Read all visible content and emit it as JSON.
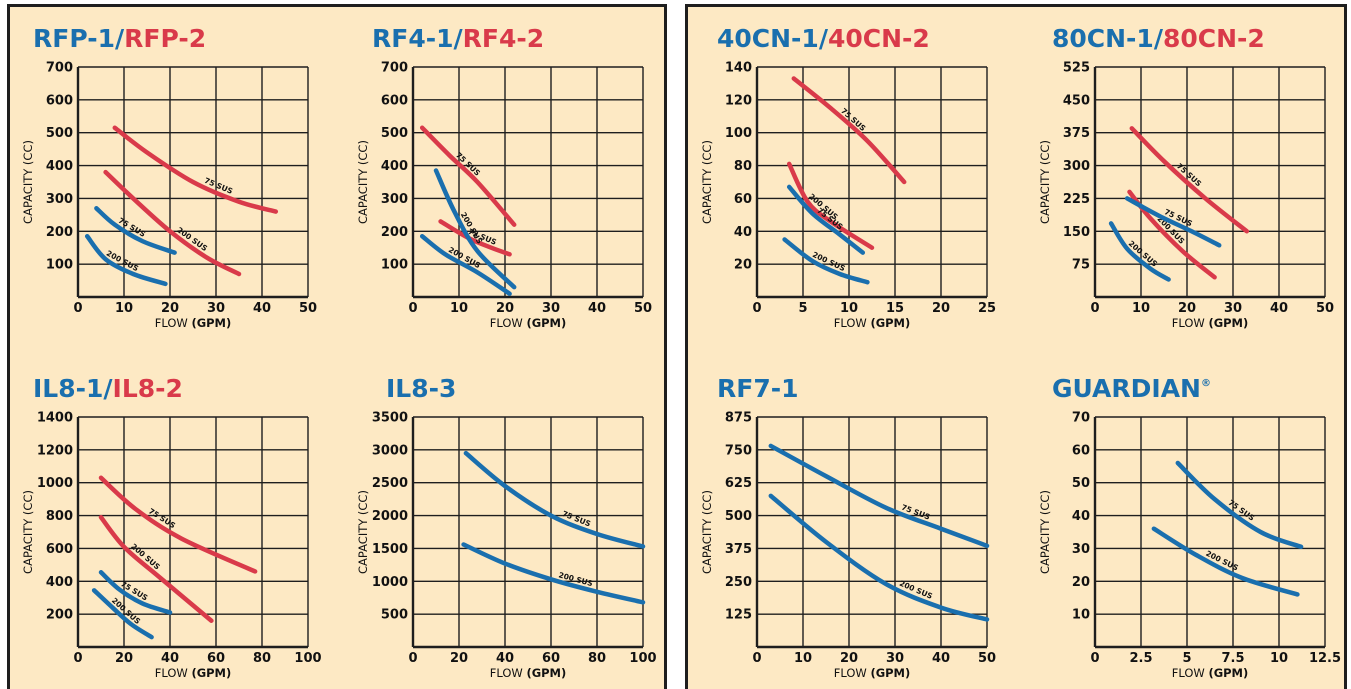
{
  "colors": {
    "blue": "#1a6fae",
    "red": "#d93a4a",
    "background": "#fde9c4",
    "grid": "#1e1e1e"
  },
  "xlabel_prefix": "FLOW ",
  "xlabel_unit": "(GPM)",
  "ylabel": "CAPACITY (CC)",
  "chart_data": [
    {
      "type": "line",
      "title_parts": [
        {
          "text": "RFP-1/",
          "color": "blue"
        },
        {
          "text": "RFP-2",
          "color": "red"
        }
      ],
      "xlim": [
        0,
        50
      ],
      "ylim": [
        0,
        700
      ],
      "xticks": [
        0,
        10,
        20,
        30,
        40,
        50
      ],
      "yticks": [
        100,
        200,
        300,
        400,
        500,
        600,
        700
      ],
      "ytick_labels": [
        "100",
        "200",
        "300",
        "400",
        "500",
        "600",
        "700"
      ],
      "series": [
        {
          "color": "red",
          "label": "75 SUS",
          "points": [
            [
              8,
              515
            ],
            [
              15,
              440
            ],
            [
              25,
              350
            ],
            [
              35,
              290
            ],
            [
              43,
              260
            ]
          ]
        },
        {
          "color": "red",
          "label": "200 SUS",
          "points": [
            [
              6,
              380
            ],
            [
              12,
              300
            ],
            [
              20,
              200
            ],
            [
              28,
              120
            ],
            [
              35,
              70
            ]
          ]
        },
        {
          "color": "blue",
          "label": "75 SUS",
          "points": [
            [
              4,
              270
            ],
            [
              8,
              220
            ],
            [
              14,
              170
            ],
            [
              21,
              135
            ]
          ]
        },
        {
          "color": "blue",
          "label": "200 SUS",
          "points": [
            [
              2,
              185
            ],
            [
              6,
              115
            ],
            [
              12,
              70
            ],
            [
              19,
              40
            ]
          ]
        }
      ]
    },
    {
      "type": "line",
      "title_parts": [
        {
          "text": "RF4-1/",
          "color": "blue"
        },
        {
          "text": "RF4-2",
          "color": "red"
        }
      ],
      "xlim": [
        0,
        50
      ],
      "ylim": [
        0,
        700
      ],
      "xticks": [
        0,
        10,
        20,
        30,
        40,
        50
      ],
      "yticks": [
        100,
        200,
        300,
        400,
        500,
        600,
        700
      ],
      "ytick_labels": [
        "100",
        "200",
        "300",
        "400",
        "500",
        "600",
        "700"
      ],
      "series": [
        {
          "color": "red",
          "label": "75 SUS",
          "points": [
            [
              2,
              515
            ],
            [
              8,
              430
            ],
            [
              14,
              350
            ],
            [
              22,
              220
            ]
          ]
        },
        {
          "color": "red",
          "label": "75 SUS",
          "points": [
            [
              6,
              230
            ],
            [
              12,
              180
            ],
            [
              17,
              150
            ],
            [
              21,
              130
            ]
          ]
        },
        {
          "color": "blue",
          "label": "200 SUS",
          "points": [
            [
              5,
              385
            ],
            [
              9,
              260
            ],
            [
              14,
              140
            ],
            [
              22,
              30
            ]
          ]
        },
        {
          "color": "blue",
          "label": "200 SUS",
          "points": [
            [
              2,
              185
            ],
            [
              7,
              130
            ],
            [
              14,
              75
            ],
            [
              21,
              10
            ]
          ]
        }
      ]
    },
    {
      "type": "line",
      "title_parts": [
        {
          "text": "40CN-1/",
          "color": "blue"
        },
        {
          "text": "40CN-2",
          "color": "red"
        }
      ],
      "xlim": [
        0,
        25
      ],
      "ylim": [
        0,
        140
      ],
      "xticks": [
        0,
        5,
        10,
        15,
        20,
        25
      ],
      "yticks": [
        20,
        40,
        60,
        80,
        100,
        120,
        140
      ],
      "ytick_labels": [
        "20",
        "40",
        "60",
        "80",
        "100",
        "120",
        "140"
      ],
      "series": [
        {
          "color": "red",
          "label": "75 SUS",
          "points": [
            [
              4,
              133
            ],
            [
              8,
              115
            ],
            [
              12,
              95
            ],
            [
              16,
              70
            ]
          ]
        },
        {
          "color": "red",
          "label": "200 SUS",
          "points": [
            [
              3.5,
              81
            ],
            [
              5.5,
              58
            ],
            [
              8,
              46
            ],
            [
              12.5,
              30
            ]
          ]
        },
        {
          "color": "blue",
          "label": "75 SUS",
          "points": [
            [
              3.5,
              67
            ],
            [
              6,
              51
            ],
            [
              9,
              38
            ],
            [
              11.5,
              27
            ]
          ]
        },
        {
          "color": "blue",
          "label": "200 SUS",
          "points": [
            [
              3,
              35
            ],
            [
              6,
              22
            ],
            [
              9,
              14
            ],
            [
              12,
              9
            ]
          ]
        }
      ]
    },
    {
      "type": "line",
      "title_parts": [
        {
          "text": "80CN-1/",
          "color": "blue"
        },
        {
          "text": "80CN-2",
          "color": "red"
        }
      ],
      "xlim": [
        0,
        50
      ],
      "ylim": [
        0,
        525
      ],
      "xticks": [
        0,
        10,
        20,
        30,
        40,
        50
      ],
      "yticks": [
        75,
        150,
        225,
        300,
        375,
        450,
        525
      ],
      "ytick_labels": [
        "75",
        "150",
        "225",
        "300",
        "375",
        "450",
        "525"
      ],
      "series": [
        {
          "color": "red",
          "label": "75 SUS",
          "points": [
            [
              8,
              385
            ],
            [
              15,
              310
            ],
            [
              24,
              225
            ],
            [
              33,
              150
            ]
          ]
        },
        {
          "color": "red",
          "label": "200 SUS",
          "points": [
            [
              7.5,
              240
            ],
            [
              12,
              180
            ],
            [
              19,
              105
            ],
            [
              26,
              45
            ]
          ]
        },
        {
          "color": "blue",
          "label": "75 SUS",
          "points": [
            [
              7,
              225
            ],
            [
              14,
              185
            ],
            [
              21,
              150
            ],
            [
              27,
              118
            ]
          ]
        },
        {
          "color": "blue",
          "label": "200 SUS",
          "points": [
            [
              3.5,
              168
            ],
            [
              7,
              110
            ],
            [
              12,
              65
            ],
            [
              16,
              40
            ]
          ]
        }
      ]
    },
    {
      "type": "line",
      "title_parts": [
        {
          "text": "IL8-1/",
          "color": "blue"
        },
        {
          "text": "IL8-2",
          "color": "red"
        }
      ],
      "xlim": [
        0,
        100
      ],
      "ylim": [
        0,
        1400
      ],
      "xticks": [
        0,
        20,
        40,
        60,
        80,
        100
      ],
      "yticks": [
        200,
        400,
        600,
        800,
        1000,
        1200,
        1400
      ],
      "ytick_labels": [
        "200",
        "400",
        "600",
        "800",
        "1000",
        "1200",
        "1400"
      ],
      "series": [
        {
          "color": "red",
          "label": "75 SUS",
          "points": [
            [
              10,
              1030
            ],
            [
              25,
              840
            ],
            [
              45,
              660
            ],
            [
              77,
              460
            ]
          ]
        },
        {
          "color": "red",
          "label": "200 SUS",
          "points": [
            [
              10,
              790
            ],
            [
              20,
              610
            ],
            [
              35,
              430
            ],
            [
              58,
              160
            ]
          ]
        },
        {
          "color": "blue",
          "label": "75 SUS",
          "points": [
            [
              10,
              455
            ],
            [
              18,
              350
            ],
            [
              28,
              265
            ],
            [
              40,
              210
            ]
          ]
        },
        {
          "color": "blue",
          "label": "200 SUS",
          "points": [
            [
              7,
              345
            ],
            [
              15,
              240
            ],
            [
              23,
              140
            ],
            [
              32,
              60
            ]
          ]
        }
      ]
    },
    {
      "type": "line",
      "title_parts": [
        {
          "text": "IL8-3",
          "color": "blue"
        }
      ],
      "xlim": [
        0,
        100
      ],
      "ylim": [
        0,
        3500
      ],
      "xticks": [
        0,
        20,
        40,
        60,
        80,
        100
      ],
      "yticks": [
        500,
        1000,
        1500,
        2000,
        2500,
        3000,
        3500
      ],
      "ytick_labels": [
        "500",
        "1000",
        "1500",
        "2000",
        "2500",
        "3000",
        "3500"
      ],
      "series": [
        {
          "color": "blue",
          "label": "75 SUS",
          "points": [
            [
              23,
              2950
            ],
            [
              40,
              2450
            ],
            [
              60,
              2000
            ],
            [
              80,
              1720
            ],
            [
              100,
              1530
            ]
          ]
        },
        {
          "color": "blue",
          "label": "200 SUS",
          "points": [
            [
              22,
              1560
            ],
            [
              40,
              1270
            ],
            [
              60,
              1030
            ],
            [
              80,
              840
            ],
            [
              100,
              680
            ]
          ]
        }
      ]
    },
    {
      "type": "line",
      "title_parts": [
        {
          "text": "RF7-1",
          "color": "blue"
        }
      ],
      "xlim": [
        0,
        50
      ],
      "ylim": [
        0,
        875
      ],
      "xticks": [
        0,
        10,
        20,
        30,
        40,
        50
      ],
      "yticks": [
        125,
        250,
        375,
        500,
        625,
        750,
        875
      ],
      "ytick_labels": [
        "125",
        "250",
        "375",
        "500",
        "625",
        "750",
        "875"
      ],
      "series": [
        {
          "color": "blue",
          "label": "75 SUS",
          "points": [
            [
              3,
              765
            ],
            [
              15,
              650
            ],
            [
              28,
              530
            ],
            [
              40,
              450
            ],
            [
              50,
              385
            ]
          ]
        },
        {
          "color": "blue",
          "label": "200 SUS",
          "points": [
            [
              3,
              575
            ],
            [
              15,
              400
            ],
            [
              28,
              240
            ],
            [
              40,
              150
            ],
            [
              50,
              105
            ]
          ]
        }
      ]
    },
    {
      "type": "line",
      "title_parts": [
        {
          "text": "GUARDIAN",
          "color": "blue"
        },
        {
          "text": "®",
          "color": "blue",
          "sup": true
        }
      ],
      "xlim": [
        0,
        12.5
      ],
      "ylim": [
        0,
        70
      ],
      "xticks": [
        0,
        2.5,
        5,
        7.5,
        10,
        12.5
      ],
      "xtick_labels": [
        "0",
        "2.5",
        "5",
        "7.5",
        "10",
        "12.5"
      ],
      "yticks": [
        10,
        20,
        30,
        40,
        50,
        60,
        70
      ],
      "ytick_labels": [
        "10",
        "20",
        "30",
        "40",
        "50",
        "60",
        "70"
      ],
      "series": [
        {
          "color": "blue",
          "label": "75 SUS",
          "points": [
            [
              4.5,
              56
            ],
            [
              6.5,
              45
            ],
            [
              9,
              35
            ],
            [
              11.2,
              30.5
            ]
          ]
        },
        {
          "color": "blue",
          "label": "200 SUS",
          "points": [
            [
              3.2,
              36
            ],
            [
              5.5,
              28
            ],
            [
              8,
              21
            ],
            [
              11,
              16
            ]
          ]
        }
      ]
    }
  ]
}
